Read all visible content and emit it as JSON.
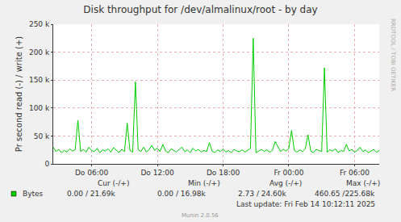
{
  "chart_data": {
    "type": "line",
    "title": "Disk throughput for /dev/almalinux/root - by day",
    "y_label": "Pr second read (-) / write (+)",
    "categories": [
      null,
      null,
      null,
      null,
      null,
      null,
      null,
      null,
      null,
      null,
      null,
      null,
      null,
      null,
      "Do 06:00",
      null,
      null,
      null,
      null,
      null,
      null,
      null,
      null,
      null,
      null,
      null,
      null,
      null,
      null,
      null,
      null,
      null,
      null,
      null,
      null,
      null,
      null,
      null,
      "Do 12:00",
      null,
      null,
      null,
      null,
      null,
      null,
      null,
      null,
      null,
      null,
      null,
      null,
      null,
      null,
      null,
      null,
      null,
      null,
      null,
      null,
      null,
      null,
      null,
      "Do 18:00",
      null,
      null,
      null,
      null,
      null,
      null,
      null,
      null,
      null,
      null,
      null,
      null,
      null,
      null,
      null,
      null,
      null,
      null,
      null,
      null,
      null,
      null,
      null,
      "Fr 00:00",
      null,
      null,
      null,
      null,
      null,
      null,
      null,
      null,
      null,
      null,
      null,
      null,
      null,
      null,
      null,
      null,
      null,
      null,
      null,
      null,
      null,
      null,
      null,
      "Fr 06:00",
      null,
      null,
      null,
      null,
      null,
      null,
      null,
      null,
      null
    ],
    "series": [
      {
        "name": "Bytes",
        "color": "#00CC00",
        "values": [
          30000,
          22000,
          26000,
          20000,
          24000,
          21000,
          27000,
          23000,
          25000,
          78000,
          22000,
          26000,
          21000,
          30000,
          24000,
          22000,
          28000,
          20000,
          25000,
          23000,
          27000,
          21000,
          29000,
          24000,
          20000,
          26000,
          22000,
          73000,
          24000,
          21000,
          147000,
          25000,
          22000,
          30000,
          21000,
          26000,
          33000,
          24000,
          28000,
          22000,
          35000,
          23000,
          20000,
          27000,
          24000,
          21000,
          26000,
          30000,
          22000,
          25000,
          20000,
          28000,
          23000,
          26000,
          21000,
          24000,
          22000,
          38000,
          23000,
          20000,
          25000,
          22000,
          27000,
          21000,
          24000,
          20000,
          26000,
          23000,
          22000,
          25000,
          21000,
          24000,
          28000,
          225000,
          20000,
          23000,
          26000,
          22000,
          25000,
          21000,
          24000,
          40000,
          30000,
          22000,
          26000,
          23000,
          28000,
          60000,
          24000,
          21000,
          25000,
          22000,
          27000,
          52000,
          23000,
          20000,
          26000,
          24000,
          22000,
          172000,
          21000,
          25000,
          23000,
          27000,
          20000,
          24000,
          22000,
          35000,
          23000,
          26000,
          21000,
          24000,
          30000,
          22000,
          25000,
          20000,
          23000,
          26000,
          21000,
          24000
        ]
      }
    ],
    "ylim": [
      0,
      250000
    ],
    "yticks": [
      0,
      {
        "value": 50000,
        "label": "50 k"
      },
      {
        "value": 100000,
        "label": "100 k"
      },
      {
        "value": 150000,
        "label": "150 k"
      },
      {
        "value": 200000,
        "label": "200 k"
      },
      {
        "value": 250000,
        "label": "250 k"
      }
    ],
    "grid": true,
    "annotations": [
      "Cur (-/+)",
      "Min (-/+)",
      "Avg (-/+)",
      "Max (-/+)",
      "0.00 / 21.69k",
      "0.00 / 16.98k",
      "2.73 / 24.60k",
      "460.65 /225.68k",
      "Last update: Fri Feb 14 10:12:11 2025",
      "Munin 2.0.56",
      "RRDTOOL / TOBI OETIKER"
    ]
  }
}
